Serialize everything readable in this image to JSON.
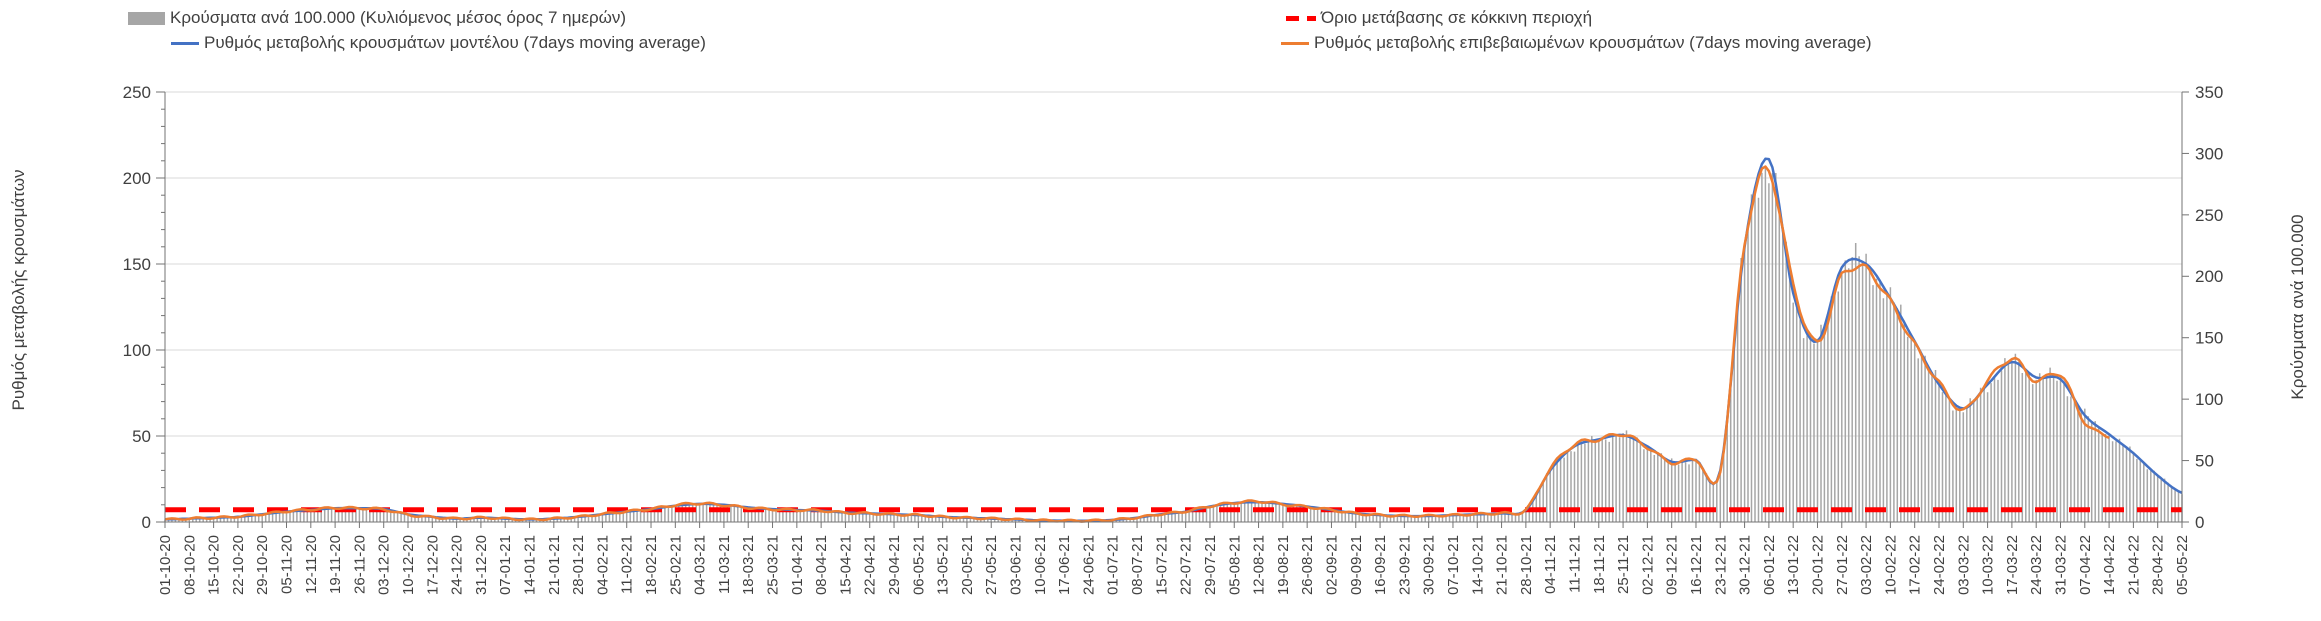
{
  "legend": {
    "items": [
      {
        "id": "cases-per-100k",
        "label": "Κρούσματα ανά 100.000 (Κυλιόμενος μέσος όρος 7 ημερών)",
        "swatch": "bar",
        "color": "#a6a6a6"
      },
      {
        "id": "red-zone-threshold",
        "label": "Όριο μετάβασης σε κόκκινη περιοχή",
        "swatch": "dashed-line",
        "color": "#ff0000"
      },
      {
        "id": "model-rate",
        "label": "Ρυθμός μεταβολής κρουσμάτων μοντέλου (7days moving average)",
        "swatch": "line",
        "color": "#4472c4"
      },
      {
        "id": "confirmed-rate",
        "label": "Ρυθμός μεταβολής επιβεβαιωμένων κρουσμάτων (7days moving average)",
        "swatch": "line",
        "color": "#ed7d31"
      }
    ]
  },
  "colors": {
    "bars": "#a6a6a6",
    "model_line": "#4472c4",
    "confirmed_line": "#ed7d31",
    "threshold_line": "#ff0000",
    "gridline": "#d9d9d9",
    "axis": "#737373",
    "text": "#404040"
  },
  "chart_data": {
    "type": "bar",
    "subtype": "combo-bar-and-line-dual-axis",
    "grid": "horizontal-on",
    "legend_position": "top-two-rows",
    "left_axis": {
      "title": "Ρυθμός μεταβολής κρουσμάτων",
      "min": 0,
      "max": 250,
      "tick_step": 50,
      "ticks": [
        0,
        50,
        100,
        150,
        200,
        250
      ],
      "minor_tick_step": 10
    },
    "right_axis": {
      "title": "Κρούσματα ανά 100.000",
      "min": 0,
      "max": 350,
      "tick_step": 50,
      "ticks": [
        0,
        50,
        100,
        150,
        200,
        250,
        300,
        350
      ]
    },
    "threshold": {
      "name": "Όριο μετάβασης σε κόκκινη περιοχή",
      "axis": "right",
      "value": 10,
      "style": "dashed",
      "color": "#ff0000"
    },
    "x_labels": [
      "01-10-20",
      "08-10-20",
      "15-10-20",
      "22-10-20",
      "29-10-20",
      "05-11-20",
      "12-11-20",
      "19-11-20",
      "26-11-20",
      "03-12-20",
      "10-12-20",
      "17-12-20",
      "24-12-20",
      "31-12-20",
      "07-01-21",
      "14-01-21",
      "21-01-21",
      "28-01-21",
      "04-02-21",
      "11-02-21",
      "18-02-21",
      "25-02-21",
      "04-03-21",
      "11-03-21",
      "18-03-21",
      "25-03-21",
      "01-04-21",
      "08-04-21",
      "15-04-21",
      "22-04-21",
      "29-04-21",
      "06-05-21",
      "13-05-21",
      "20-05-21",
      "27-05-21",
      "03-06-21",
      "10-06-21",
      "17-06-21",
      "24-06-21",
      "01-07-21",
      "08-07-21",
      "15-07-21",
      "22-07-21",
      "29-07-21",
      "05-08-21",
      "12-08-21",
      "19-08-21",
      "26-08-21",
      "02-09-21",
      "09-09-21",
      "16-09-21",
      "23-09-21",
      "30-09-21",
      "07-10-21",
      "14-10-21",
      "21-10-21",
      "28-10-21",
      "04-11-21",
      "11-11-21",
      "18-11-21",
      "25-11-21",
      "02-12-21",
      "09-12-21",
      "16-12-21",
      "23-12-21",
      "30-12-21",
      "06-01-22",
      "13-01-22",
      "20-01-22",
      "27-01-22",
      "03-02-22",
      "10-02-22",
      "17-02-22",
      "24-02-22",
      "03-03-22",
      "10-03-22",
      "17-03-22",
      "24-03-22",
      "31-03-22",
      "07-04-22",
      "14-04-22",
      "21-04-22",
      "28-04-22",
      "05-05-22"
    ],
    "series": [
      {
        "name": "Κρούσματα ανά 100.000 (Κυλιόμενος μέσος όρος 7 ημερών)",
        "type": "bar",
        "axis": "right",
        "color": "#a6a6a6",
        "values": [
          2,
          3,
          3.5,
          4,
          6,
          8,
          10,
          11,
          11,
          10.5,
          6,
          4,
          3,
          3.5,
          3,
          2,
          3,
          4,
          6,
          8.5,
          10.5,
          13,
          15,
          14,
          12,
          10.5,
          10,
          9,
          8,
          7,
          6,
          5.5,
          4,
          3.5,
          3,
          2,
          1.5,
          1,
          1,
          1.5,
          3.5,
          6,
          8.5,
          12.5,
          15.5,
          16,
          14.5,
          12.5,
          10,
          7,
          5.5,
          5,
          5,
          5.5,
          6,
          7,
          10,
          42,
          61,
          67,
          71,
          61,
          49,
          50,
          42,
          224,
          290,
          186,
          147,
          207,
          210,
          182,
          147,
          112,
          92,
          112,
          130,
          118,
          116,
          87,
          71,
          56,
          38,
          24
        ]
      },
      {
        "name": "Ρυθμός μεταβολής κρουσμάτων μοντέλου (7days moving average)",
        "type": "line",
        "axis": "left",
        "color": "#4472c4",
        "values": [
          1.5,
          2,
          2.5,
          3,
          4.5,
          6,
          7,
          8,
          8,
          7.5,
          4.5,
          3,
          2,
          2.5,
          2,
          1.5,
          2,
          3,
          4.5,
          6,
          7.5,
          9.5,
          10.5,
          10,
          8.5,
          7.5,
          7,
          6.5,
          5.5,
          5,
          4.5,
          4,
          3,
          2.5,
          2,
          1.5,
          1,
          0.8,
          0.8,
          1.2,
          2.5,
          4.5,
          6,
          9,
          11,
          11.5,
          10.5,
          9,
          7,
          5,
          4,
          3.5,
          3.5,
          4,
          4.5,
          5,
          7,
          30,
          44,
          48,
          50.5,
          44,
          35,
          36,
          30,
          160,
          211,
          133,
          105,
          148,
          150,
          130,
          105,
          80,
          66,
          80,
          93,
          84,
          83,
          62,
          51,
          40,
          27,
          17
        ]
      },
      {
        "name": "Ρυθμός μεταβολής επιβεβαιωμένων κρουσμάτων (7days moving average)",
        "type": "line",
        "axis": "left",
        "color": "#ed7d31",
        "values": [
          1.5,
          2,
          2.5,
          3.2,
          4.6,
          6.2,
          7.2,
          8.2,
          8,
          7.3,
          4.2,
          2.8,
          2,
          2.5,
          2,
          1.5,
          2,
          3,
          4.6,
          6.2,
          7.6,
          9.8,
          10.8,
          9.8,
          8.3,
          7.4,
          7,
          6.6,
          5.4,
          5,
          4.4,
          4,
          3,
          2.4,
          2,
          1.5,
          1,
          0.8,
          0.8,
          1.3,
          2.6,
          4.6,
          6.2,
          9.2,
          11.2,
          12,
          10.3,
          8.8,
          7,
          5,
          4,
          3.6,
          3.6,
          4,
          4.6,
          5.2,
          7.2,
          31,
          45,
          48,
          51,
          43.5,
          34.5,
          36.5,
          29.5,
          162,
          204,
          138,
          104,
          143,
          147,
          128,
          103,
          81,
          65,
          82,
          95,
          82,
          86,
          58,
          50,
          null,
          null,
          null
        ]
      }
    ],
    "note_values_are": "weekly anchor readings at each x tick; bars are daily data per 100.000 on the right axis, lines are 7-day moving averages on the left axis"
  }
}
